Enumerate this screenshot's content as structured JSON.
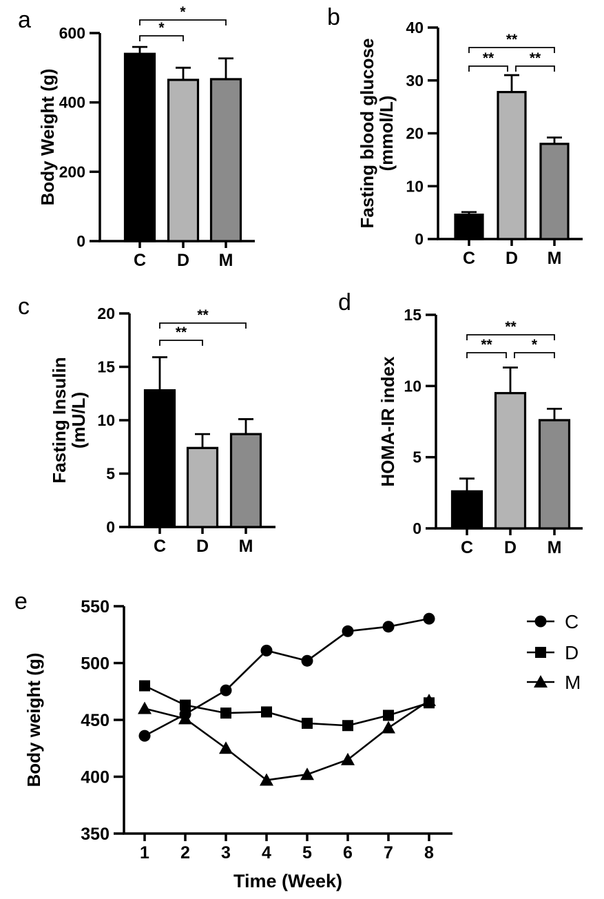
{
  "figure": {
    "background": "#ffffff",
    "panel_letters": [
      "a",
      "b",
      "c",
      "d",
      "e"
    ]
  },
  "colors": {
    "axis": "#000000",
    "bar_c": "#000000",
    "bar_d": "#b4b4b4",
    "bar_m": "#8b8b8b",
    "line": "#000000"
  },
  "chart_data": [
    {
      "panel": "a",
      "type": "bar",
      "ylabel": "Body Weight (g)",
      "categories": [
        "C",
        "D",
        "M"
      ],
      "values": [
        540,
        465,
        467
      ],
      "errors": [
        20,
        35,
        60
      ],
      "ylim": [
        0,
        600
      ],
      "yticks": [
        0,
        200,
        400,
        600
      ],
      "bar_colors": [
        "#000000",
        "#b4b4b4",
        "#8b8b8b"
      ],
      "significance": [
        {
          "from": "C",
          "to": "D",
          "label": "*",
          "level": 0
        },
        {
          "from": "C",
          "to": "M",
          "label": "*",
          "level": 1
        }
      ]
    },
    {
      "panel": "b",
      "type": "bar",
      "ylabel": "Fasting blood glucose\n(mmol/L)",
      "categories": [
        "C",
        "D",
        "M"
      ],
      "values": [
        4.6,
        27.8,
        18
      ],
      "errors": [
        0.5,
        3.2,
        1.2
      ],
      "ylim": [
        0,
        40
      ],
      "yticks": [
        0,
        10,
        20,
        30,
        40
      ],
      "bar_colors": [
        "#000000",
        "#b4b4b4",
        "#8b8b8b"
      ],
      "significance": [
        {
          "from": "C",
          "to": "D",
          "label": "**",
          "level": 0
        },
        {
          "from": "D",
          "to": "M",
          "label": "**",
          "level": 0
        },
        {
          "from": "C",
          "to": "M",
          "label": "**",
          "level": 1
        }
      ]
    },
    {
      "panel": "c",
      "type": "bar",
      "ylabel": "Fasting Insulin\n(mU/L)",
      "categories": [
        "C",
        "D",
        "M"
      ],
      "values": [
        12.8,
        7.4,
        8.7
      ],
      "errors": [
        3.1,
        1.3,
        1.4
      ],
      "ylim": [
        0,
        20
      ],
      "yticks": [
        0,
        5,
        10,
        15,
        20
      ],
      "bar_colors": [
        "#000000",
        "#b4b4b4",
        "#8b8b8b"
      ],
      "significance": [
        {
          "from": "C",
          "to": "D",
          "label": "**",
          "level": 0
        },
        {
          "from": "C",
          "to": "M",
          "label": "**",
          "level": 1
        }
      ]
    },
    {
      "panel": "d",
      "type": "bar",
      "ylabel": "HOMA-IR index",
      "categories": [
        "C",
        "D",
        "M"
      ],
      "values": [
        2.6,
        9.5,
        7.6
      ],
      "errors": [
        0.9,
        1.8,
        0.8
      ],
      "ylim": [
        0,
        15
      ],
      "yticks": [
        0,
        5,
        10,
        15
      ],
      "bar_colors": [
        "#000000",
        "#b4b4b4",
        "#8b8b8b"
      ],
      "significance": [
        {
          "from": "C",
          "to": "D",
          "label": "**",
          "level": 0
        },
        {
          "from": "D",
          "to": "M",
          "label": "*",
          "level": 0
        },
        {
          "from": "C",
          "to": "M",
          "label": "**",
          "level": 1
        }
      ]
    },
    {
      "panel": "e",
      "type": "line",
      "xlabel": "Time (Week)",
      "ylabel": "Body weight (g)",
      "x": [
        1,
        2,
        3,
        4,
        5,
        6,
        7,
        8
      ],
      "series": [
        {
          "name": "C",
          "marker": "circle",
          "values": [
            436,
            455,
            476,
            511,
            502,
            528,
            532,
            539
          ]
        },
        {
          "name": "D",
          "marker": "square",
          "values": [
            480,
            463,
            456,
            457,
            447,
            445,
            454,
            465
          ]
        },
        {
          "name": "M",
          "marker": "triangle",
          "values": [
            460,
            451,
            425,
            397,
            402,
            415,
            443,
            467
          ]
        }
      ],
      "ylim": [
        350,
        550
      ],
      "yticks": [
        350,
        400,
        450,
        500,
        550
      ],
      "legend": {
        "position": "right",
        "entries": [
          "C",
          "D",
          "M"
        ]
      }
    }
  ]
}
